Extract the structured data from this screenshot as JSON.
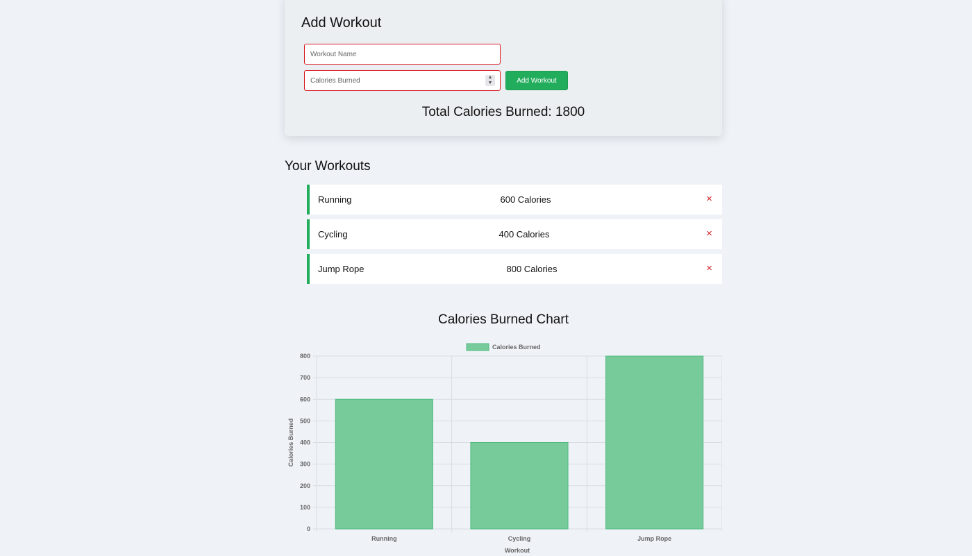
{
  "form": {
    "title": "Add Workout",
    "name_placeholder": "Workout Name",
    "calories_placeholder": "Calories Burned",
    "add_button": "Add Workout",
    "total_text": "Total Calories Burned: 1800"
  },
  "list": {
    "title": "Your Workouts",
    "items": [
      {
        "name": "Running",
        "calories": "600 Calories",
        "delete": "×"
      },
      {
        "name": "Cycling",
        "calories": "400 Calories",
        "delete": "×"
      },
      {
        "name": "Jump Rope",
        "calories": "800 Calories",
        "delete": "×"
      }
    ]
  },
  "chart_title": "Calories Burned Chart",
  "chart_data": {
    "type": "bar",
    "categories": [
      "Running",
      "Cycling",
      "Jump Rope"
    ],
    "series": [
      {
        "name": "Calories Burned",
        "values": [
          600,
          400,
          800
        ]
      }
    ],
    "xlabel": "Workout",
    "ylabel": "Calories Burned",
    "ylim": [
      0,
      800
    ],
    "yticks": [
      0,
      100,
      200,
      300,
      400,
      500,
      600,
      700,
      800
    ],
    "grid": true,
    "legend": "top-center",
    "bar_color": "#77cb9b",
    "bar_border": "#4fb97e"
  },
  "colors": {
    "accent": "#22ad5c",
    "danger": "#d11f26",
    "input_border": "#d81c24"
  }
}
